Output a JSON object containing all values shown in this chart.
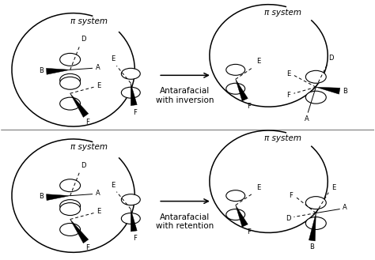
{
  "bg_color": "#ffffff",
  "line_color": "#000000",
  "top_label": "Antarafacial\nwith inversion",
  "bottom_label": "Antarafacial\nwith retention",
  "pi_system": "π system",
  "font_size_label": 7.5,
  "font_size_atom": 6.0
}
